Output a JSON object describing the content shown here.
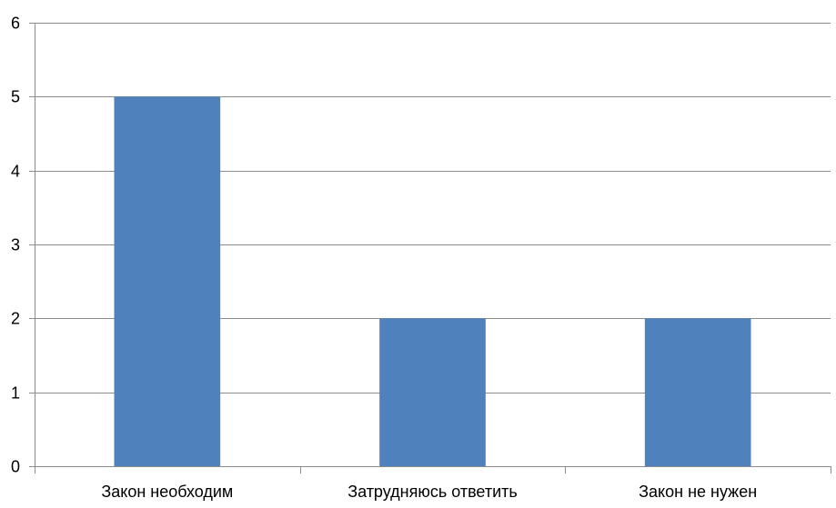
{
  "chart_data": {
    "type": "bar",
    "categories": [
      "Закон необходим",
      "Затрудняюсь ответить",
      "Закон не нужен"
    ],
    "values": [
      5,
      2,
      2
    ],
    "ylim": [
      0,
      6
    ],
    "yticks": [
      0,
      1,
      2,
      3,
      4,
      5,
      6
    ],
    "grid": true,
    "legend": "none",
    "title": "",
    "xlabel": "",
    "ylabel": ""
  },
  "colors": {
    "bar": "#4f81bd",
    "grid": "#8c8c8c",
    "axis": "#8c8c8c"
  }
}
